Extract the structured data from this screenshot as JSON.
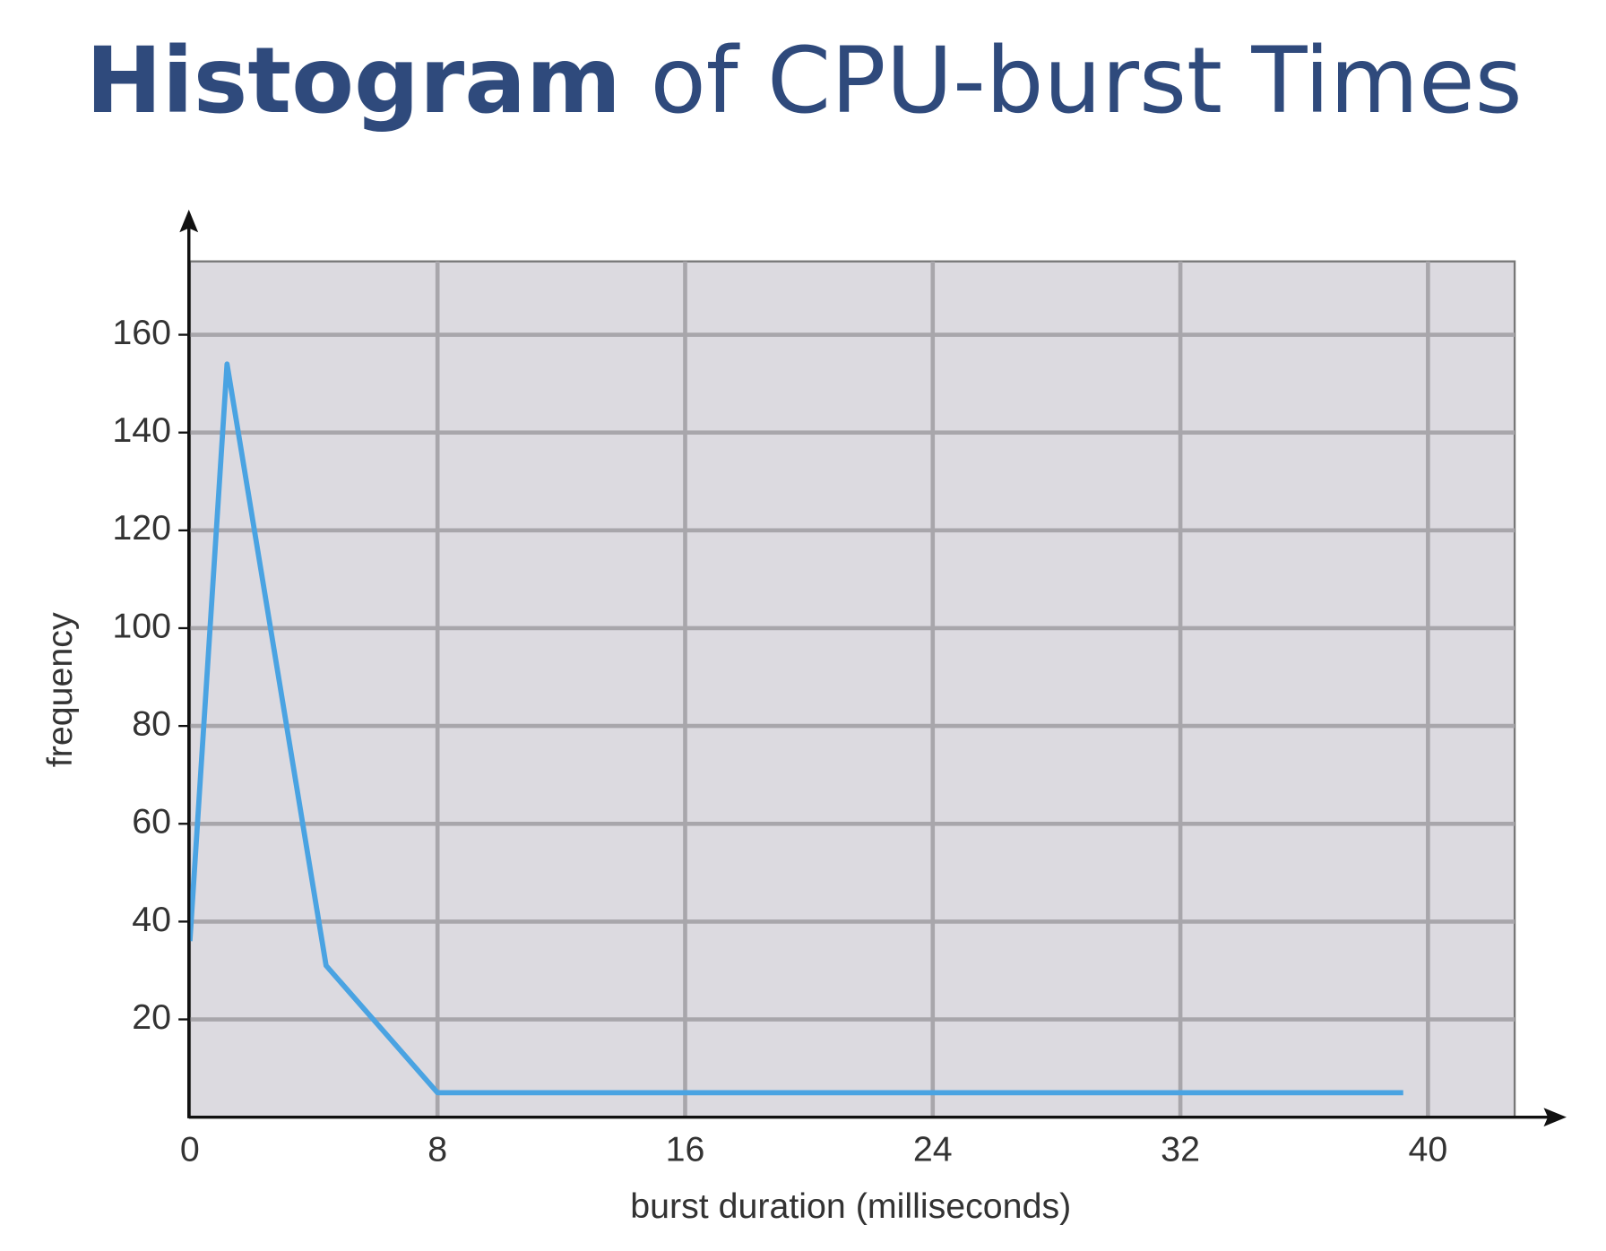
{
  "chart_data": {
    "type": "line",
    "title": [
      "Histogram",
      "of CPU-burst Times"
    ],
    "x_label": "burst duration (milliseconds)",
    "y_label": "frequency",
    "x": [
      0,
      1.2,
      4.4,
      8,
      39.2
    ],
    "series": [
      {
        "color": "#4aa3e2",
        "values": [
          36,
          154,
          31,
          5,
          5
        ]
      }
    ],
    "xlim": [
      0,
      42.8
    ],
    "ylim": [
      0,
      175
    ],
    "xticks": [
      0,
      8,
      16,
      24,
      32,
      40
    ],
    "yticks": [
      20,
      40,
      60,
      80,
      100,
      120,
      140,
      160
    ],
    "grid": true
  }
}
